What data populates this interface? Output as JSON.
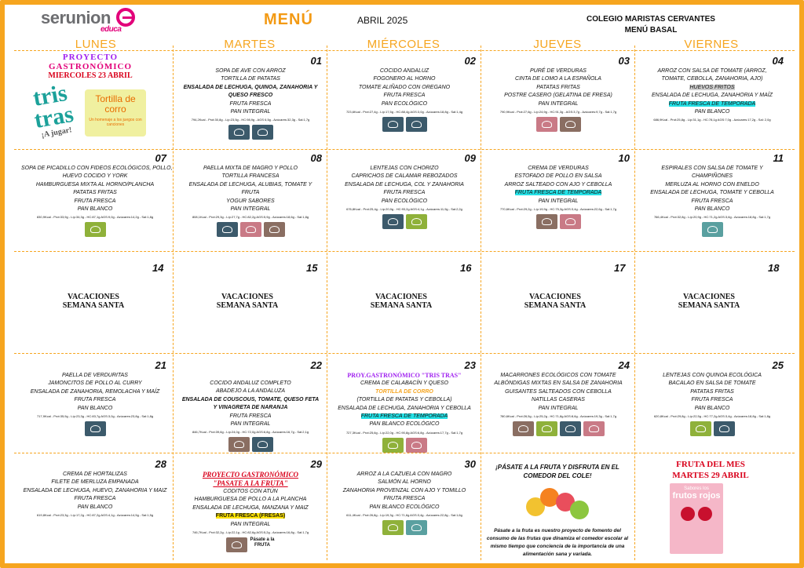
{
  "brand": {
    "logo_text": "serunion",
    "logo_sub": "educa"
  },
  "header": {
    "title": "MENÚ",
    "month": "ABRIL 2025",
    "school": "COLEGIO MARISTAS CERVANTES",
    "subtitle": "MENÚ BASAL"
  },
  "days": [
    "LUNES",
    "MARTES",
    "MIÉRCOLES",
    "JUEVES",
    "VIERNES"
  ],
  "colors": {
    "accent": "#f6a51f",
    "highlight_cyan": "#25e1e6",
    "highlight_yellow": "#ffe400",
    "project_red": "#d9001b"
  },
  "project_banner": {
    "line1": "PROYECTO",
    "line2": "GASTRONÓMICO",
    "line3": "MIERCOLES 23 ABRIL",
    "logo": "tris tras",
    "logo_sub": "¡A jugar!",
    "box_title": "Tortilla de corro",
    "box_sub": "Un homenaje a los juegos con canciones"
  },
  "week1": {
    "d01": {
      "num": "01",
      "items": [
        "SOPA DE AVE CON ARROZ",
        "TORTILLA DE PATATAS",
        "ENSALADA DE LECHUGA, QUINOA, ZANAHORIA Y QUESO FRESCO",
        "FRUTA FRESCA",
        "PAN INTEGRAL"
      ],
      "nut": "794,2Kcal - Prot:30,8g - Líp:23,5g - HC:98,9g - AGS 6,5g - Azúcares:32,3g - Sal:1,7g"
    },
    "d02": {
      "num": "02",
      "items": [
        "COCIDO ANDALUZ",
        "FOGONERO AL HORNO",
        "TOMATE ALIÑADO CON OREGANO",
        "FRUTA FRESCA",
        "PAN ECOLÓGICO"
      ],
      "nut": "723,6Kcal - Prot:27,4g - Líp:17,5g - HC:88,4g AGS:3,0g - Azúcares:18,8g - Sal:1,4g"
    },
    "d03": {
      "num": "03",
      "items": [
        "PURÉ DE VERDURAS",
        "CINTA DE LOMO A LA ESPAÑOLA",
        "PATATAS FRITAS",
        "POSTRE CASERO (GELATINA DE FRESA)",
        "PAN INTEGRAL"
      ],
      "nut": "790,9Kcal - Prot:27,6g - Líp:24,9g - HC:91,3g - AGS:3,7g - Azúcares:9,7g - Sal:1,7g"
    },
    "d04": {
      "num": "04",
      "items": [
        "ARROZ CON SALSA DE TOMATE (ARROZ,",
        "TOMATE, CEBOLLA, ZANAHORIA, AJO)",
        "HUEVOS FRITOS",
        "ENSALADA DE LECHUGA, ZANAHORIA Y MAÍZ",
        "FRUTA FRESCA DE TEMPORADA",
        "PAN BLANCO"
      ],
      "nut": "686,9Kcal - Prot:25,8g - Líp:31,1g - HC:78,1g AGS:7,0g - Azúcares:17,2g - Sal: 2,0g"
    }
  },
  "week2": {
    "d07": {
      "num": "07",
      "items": [
        "SOPA DE PICADILLO CON FIDEOS ECOLÓGICOS, POLLO,",
        "HUEVO COCIDO Y YORK",
        "HAMBURGUESA MIXTA AL HORNO/PLANCHA",
        "PATATAS FRITAS",
        "FRUTA FRESCA",
        "PAN BLANCO"
      ],
      "nut": "830,9Kcal - Prot:33,9g - Líp:34,3g - HC:87,1g AGS:9,0g - Azúcares:14,2g - Sal:1,8g"
    },
    "d08": {
      "num": "08",
      "items": [
        "PAELLA MIXTA DE MAGRO Y POLLO",
        "TORTILLA FRANCESA",
        "ENSALADA DE LECHUGA, ALUBIAS, TOMATE Y",
        "FRUTA",
        "YOGUR SABORES",
        "PAN INTEGRAL"
      ],
      "nut": "808,1Kcal - Prot:29,3g - Líp:27,7g - HC:82,2g AGS:5,9g - Azúcares:18,6g - Sal:1,8g"
    },
    "d09": {
      "num": "09",
      "items": [
        "LENTEJAS CON CHORIZO",
        "CAPRICHOS DE CALAMAR REBOZADOS",
        "ENSALADA DE LECHUGA, COL Y ZANAHORIA",
        "FRUTA FRESCA",
        "PAN ECOLÓGICO"
      ],
      "nut": "676,8Kcal - Prot:25,4g - Líp:20,9g - HC:93,2g AGS:4,1g - Azúcares:11,9g - Sal:2,2g"
    },
    "d10": {
      "num": "10",
      "items": [
        "CREMA DE VERDURAS",
        "ESTOFADO DE POLLO EN SALSA",
        "ARROZ SALTEADO CON AJO Y CEBOLLA",
        "FRUTA FRESCA DE TEMPORADA",
        "PAN INTEGRAL"
      ],
      "nut": "770,6Kcal - Prot:29,2g - Líp:19,9g - HC:75,3g AGS:3,4g - Azúcares:22,6g - Sal:1,7g"
    },
    "d11": {
      "num": "11",
      "items": [
        "ESPIRALES CON SALSA DE TOMATE Y",
        "CHAMPIÑONES",
        "MERLUZA AL HORNO CON ENELDO",
        "ENSALADA DE LECHUGA, TOMATE Y CEBOLLA",
        "FRUTA FRESCA",
        "PAN BLANCO"
      ],
      "nut": "766,4Kcal - Prot:32,8g - Líp:20,9g - HC:71,2g AGS:3,6g - Azúcares:18,8g - Sal:1,7g"
    }
  },
  "week3": {
    "nums": [
      "14",
      "15",
      "16",
      "17",
      "18"
    ],
    "line1": "VACACIONES",
    "line2": "SEMANA SANTA"
  },
  "week4": {
    "d21": {
      "num": "21",
      "items": [
        "PAELLA DE VERDURITAS",
        "JAMONCITOS DE POLLO AL CURRY",
        "ENSALADA DE ZANAHORIA, REMOLACHA Y MAÍZ",
        "FRUTA FRESCA",
        "PAN BLANCO"
      ],
      "nut": "717,9Kcal - Prot:35,9g - Líp:23,3g - HC:83,7g AGS:3,0g - Azúcares:23,8g - Sal:1,8g"
    },
    "d22": {
      "num": "22",
      "items": [
        "COCIDO ANDALUZ COMPLETO",
        "ABADEJO A LA ANDALUZA",
        "ENSALADA DE COUSCOUS, TOMATE, QUESO FETA",
        "Y VINAGRETA DE NARANJA",
        "FRUTA FRESCA",
        "PAN INTEGRAL"
      ],
      "nut": "846,7Kcal - Prot:39,6g - Líp:24,0g - HC:72,0g AGS:6,8g - Azúcares:16,7g - Sal:2,1g"
    },
    "d23": {
      "num": "23",
      "title": "PROY.GASTRONÓMICO \"TRIS TRAS\"",
      "items": [
        "CREMA DE CALABACÍN Y QUESO",
        "TORTILLA DE CORRO",
        "(TORTILLA DE PATATAS Y CEBOLLA)",
        "ENSALADA DE LECHUGA, ZANAHORIA Y CEBOLLA",
        "FRUTA FRESCA DE TEMPORADA",
        "PAN BLANCO ECOLÓGICO"
      ],
      "nut": "727,3Kcal - Prot:25,6g - Líp:22,0g - HC:90,8g AGS:6,8g - Azúcares:17,7g - Sal:1,7g"
    },
    "d24": {
      "num": "24",
      "items": [
        "MACARRONES ECOLÓGICOS CON TOMATE",
        "ALBÓNDIGAS MIXTAS EN SALSA DE ZANAHORIA",
        "GUISANTES SALTEADOS CON CEBOLLA",
        "NATILLAS CASERAS",
        "PAN INTEGRAL"
      ],
      "nut": "780,6Kcal - Prot:26,5g - Líp:25,2g - HC:71,8g AGS:8,6g - Azúcares:19,3g - Sal:1,7g"
    },
    "d25": {
      "num": "25",
      "items": [
        "LENTEJAS CON QUINOA ECOLÓGICA",
        "BACALAO EN SALSA DE TOMATE",
        "PATATAS FRITAS",
        "FRUTA FRESCA",
        "PAN BLANCO"
      ],
      "nut": "620,8Kcal - Prot:29,8g - Líp:22,5g - HC:77,2g AGS:3,4g - Azúcares:18,8g - Sal:1,8g"
    }
  },
  "week5": {
    "d28": {
      "num": "28",
      "items": [
        "CREMA DE HORTALIZAS",
        "FILETE DE MERLUZA EMPANADA",
        "ENSALADA DE LECHUGA, HUEVO, ZANAHORIA Y MAIZ",
        "FRUTA FRESCA",
        "PAN BLANCO"
      ],
      "nut": "619,8Kcal - Prot:23,3g - Líp:17,2g - HC:87,2g AGS:4,1g - Azúcares:14,5g - Sal:1,5g"
    },
    "d29": {
      "num": "29",
      "title1": "PROYECTO GASTRONÓMICO",
      "title2": "\"PASATE A LA FRUTA\"",
      "items": [
        "CODITOS CON ATÚN",
        "HAMBURGUESA DE POLLO A LA PLANCHA",
        "ENSALADA DE LECHUGA, MANZANA Y MAIZ",
        "FRUTA FRESCA (FRESAS)",
        "PAN INTEGRAL"
      ],
      "nut": "746,7Kcal - Prot:32,2g - Líp:22,1g - HC:82,6g AGS:5,2g - Azúcares:16,8g - Sal:1,7g",
      "logo": "Pásate a la FRUTA"
    },
    "d30": {
      "num": "30",
      "items": [
        "ARROZ A LA CAZUELA CON MAGRO",
        "SALMÓN AL HORNO",
        "ZANAHORIA PROVENZAL CON AJO Y TOMILLO",
        "FRUTA FRESCA",
        "PAN BLANCO ECOLÓGICO"
      ],
      "nut": "611,4Kcal - Prot:26,8g - Líp:19,3g - HC:71,6g AGS:3,4g - Azúcares:22,8g - Sal:1,6g"
    }
  },
  "promo": {
    "heading": "¡PÁSATE A LA FRUTA Y DISFRUTA EN EL COMEDOR DEL COLE!",
    "body": "Pásate a la fruta es nuestro proyecto de fomento del consumo de las frutas que dinamiza el comedor escolar al mismo tiempo que conciencia de la importancia de una alimentación sana y variada."
  },
  "fruit_of_month": {
    "line1": "FRUTA DEL MES",
    "line2": "MARTES 29 ABRIL",
    "card_top": "Sabores los",
    "card_title": "frutos rojos"
  }
}
